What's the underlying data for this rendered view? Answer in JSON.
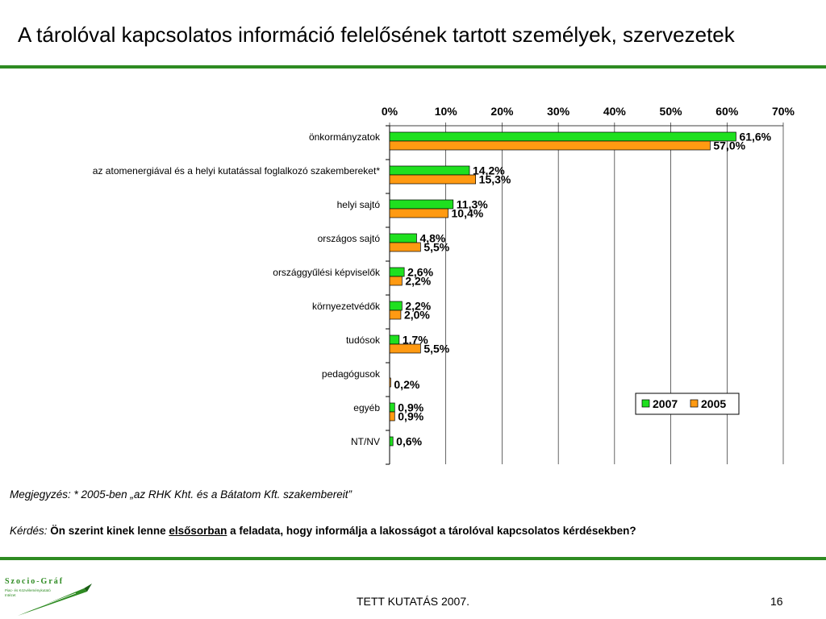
{
  "title": "A tárolóval kapcsolatos információ felelősének tartott személyek, szervezetek",
  "note": "Megjegyzés: * 2005-ben „az RHK Kht. és a Bátatom Kft. szakembereit”",
  "question": {
    "label": "Kérdés:",
    "text_before": "Ön szerint kinek lenne",
    "underlined": "elsősorban",
    "text_after": "a feladata, hogy informálja a lakosságot a tárolóval kapcsolatos kérdésekben?"
  },
  "footer": "TETT KUTATÁS 2007.",
  "page_number": "16",
  "logo": {
    "text": "Szocio-Gráf",
    "subtext": "Piac- és Közvéleménykutató Intézet"
  },
  "colors": {
    "series_2007": "#1fe01f",
    "series_2005": "#ff9a12",
    "rule": "#2e8b22",
    "logo": "#2e8b22"
  },
  "chart_data": {
    "type": "bar",
    "orientation": "horizontal",
    "categories": [
      "önkormányzatok",
      "az atomenergiával és a helyi kutatással foglalkozó szakembereket*",
      "helyi sajtó",
      "országos sajtó",
      "országgyűlési képviselők",
      "környezetvédők",
      "tudósok",
      "pedagógusok",
      "egyéb",
      "NT/NV"
    ],
    "series": [
      {
        "name": "2007",
        "values": [
          61.6,
          14.2,
          11.3,
          4.8,
          2.6,
          2.2,
          1.7,
          null,
          0.9,
          0.6
        ],
        "labels": [
          "61,6%",
          "14,2%",
          "11,3%",
          "4,8%",
          "2,6%",
          "2,2%",
          "1,7%",
          "",
          "0,9%",
          "0,6%"
        ]
      },
      {
        "name": "2005",
        "values": [
          57.0,
          15.3,
          10.4,
          5.5,
          2.2,
          2.0,
          5.5,
          0.2,
          0.9,
          null
        ],
        "labels": [
          "57,0%",
          "15,3%",
          "10,4%",
          "5,5%",
          "2,2%",
          "2,0%",
          "5,5%",
          "0,2%",
          "0,9%",
          ""
        ]
      }
    ],
    "xlim": [
      0,
      70
    ],
    "xticks": [
      "0%",
      "10%",
      "20%",
      "30%",
      "40%",
      "50%",
      "60%",
      "70%"
    ],
    "axis_position": "top",
    "grid": true,
    "legend_position": "bottom-right"
  }
}
